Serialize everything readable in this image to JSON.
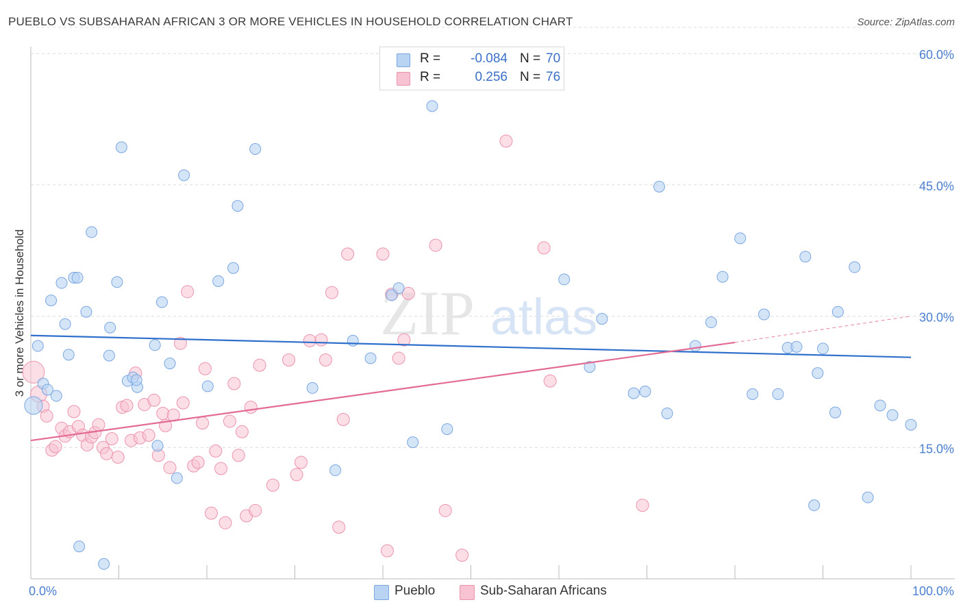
{
  "title": "PUEBLO VS SUBSAHARAN AFRICAN 3 OR MORE VEHICLES IN HOUSEHOLD CORRELATION CHART",
  "source": "Source: ZipAtlas.com",
  "watermark": {
    "zip": "ZIP",
    "atlas": "atlas"
  },
  "legend": {
    "pueblo": {
      "r_label": "R =",
      "r_value": "-0.084",
      "n_label": "N =",
      "n_value": "70"
    },
    "subsaharan": {
      "r_label": "R =",
      "r_value": "0.256",
      "n_label": "N =",
      "n_value": "76"
    }
  },
  "bottom_legend": {
    "pueblo": "Pueblo",
    "subsaharan": "Sub-Saharan Africans"
  },
  "colors": {
    "pueblo_fill": "#b9d3f3",
    "pueblo_stroke": "#7aa6e0",
    "pueblo_line": "#2f6fcc",
    "ss_fill": "#f7c2d2",
    "ss_stroke": "#eb93ad",
    "ss_line": "#e26a94",
    "grid": "#dcdcdc",
    "axis": "#bbbbbb",
    "tick_text": "#4a7fd0"
  },
  "chart_data": {
    "type": "scatter",
    "title": "PUEBLO VS SUBSAHARAN AFRICAN 3 OR MORE VEHICLES IN HOUSEHOLD CORRELATION CHART",
    "xlabel": "",
    "ylabel": "3 or more Vehicles in Household",
    "xlim": [
      0,
      100
    ],
    "ylim": [
      0,
      65
    ],
    "y_ticks": [
      15,
      30,
      45,
      60
    ],
    "y_tick_labels": [
      "15.0%",
      "30.0%",
      "45.0%",
      "60.0%"
    ],
    "x_tick_labels": [
      "0.0%",
      "100.0%"
    ],
    "series": [
      {
        "name": "Pueblo",
        "trend": {
          "x": [
            0,
            100
          ],
          "y": [
            27.8,
            25.3
          ]
        },
        "points": [
          [
            0.3,
            19.8
          ],
          [
            0.8,
            26.6
          ],
          [
            1.4,
            22.3
          ],
          [
            1.9,
            21.6
          ],
          [
            2.3,
            31.8
          ],
          [
            2.9,
            20.9
          ],
          [
            3.5,
            33.8
          ],
          [
            3.9,
            29.1
          ],
          [
            4.3,
            25.6
          ],
          [
            4.9,
            34.4
          ],
          [
            5.3,
            34.4
          ],
          [
            5.5,
            3.7
          ],
          [
            6.3,
            30.5
          ],
          [
            6.9,
            39.6
          ],
          [
            8.3,
            1.7
          ],
          [
            8.9,
            25.5
          ],
          [
            9.0,
            28.7
          ],
          [
            9.8,
            33.9
          ],
          [
            10.3,
            49.3
          ],
          [
            11.0,
            22.6
          ],
          [
            11.6,
            23.0
          ],
          [
            12.1,
            21.9
          ],
          [
            14.1,
            26.7
          ],
          [
            14.4,
            15.2
          ],
          [
            14.9,
            31.6
          ],
          [
            15.8,
            24.6
          ],
          [
            16.6,
            11.5
          ],
          [
            17.4,
            46.1
          ],
          [
            20.1,
            22.0
          ],
          [
            21.3,
            34.0
          ],
          [
            23.0,
            35.5
          ],
          [
            23.5,
            42.6
          ],
          [
            25.5,
            49.1
          ],
          [
            32.0,
            21.8
          ],
          [
            34.6,
            12.4
          ],
          [
            36.6,
            27.2
          ],
          [
            38.6,
            25.2
          ],
          [
            41.0,
            32.4
          ],
          [
            41.8,
            33.2
          ],
          [
            43.4,
            15.6
          ],
          [
            45.6,
            54.0
          ],
          [
            47.3,
            17.1
          ],
          [
            60.6,
            34.2
          ],
          [
            63.5,
            24.2
          ],
          [
            64.9,
            29.7
          ],
          [
            68.5,
            21.2
          ],
          [
            69.8,
            21.4
          ],
          [
            71.4,
            44.8
          ],
          [
            72.3,
            18.9
          ],
          [
            75.5,
            26.6
          ],
          [
            77.3,
            29.3
          ],
          [
            78.6,
            34.5
          ],
          [
            80.6,
            38.9
          ],
          [
            82.0,
            21.1
          ],
          [
            83.3,
            30.2
          ],
          [
            84.9,
            21.1
          ],
          [
            86.0,
            26.4
          ],
          [
            87.0,
            26.5
          ],
          [
            88.0,
            36.8
          ],
          [
            89.0,
            8.4
          ],
          [
            89.4,
            23.5
          ],
          [
            90.0,
            26.3
          ],
          [
            91.4,
            19.0
          ],
          [
            91.7,
            30.5
          ],
          [
            93.6,
            35.6
          ],
          [
            95.1,
            9.3
          ],
          [
            96.5,
            19.8
          ],
          [
            97.9,
            18.7
          ],
          [
            100.0,
            17.6
          ],
          [
            12.0,
            22.7
          ]
        ]
      },
      {
        "name": "Sub-Saharan Africans",
        "trend": {
          "x": [
            0,
            80
          ],
          "y": [
            15.8,
            27.0
          ]
        },
        "trend_dashed": {
          "x": [
            80,
            100
          ],
          "y": [
            27.0,
            30.0
          ]
        },
        "points": [
          [
            0.3,
            23.6
          ],
          [
            0.9,
            21.1
          ],
          [
            1.4,
            19.7
          ],
          [
            1.8,
            18.6
          ],
          [
            2.4,
            14.7
          ],
          [
            2.8,
            15.1
          ],
          [
            3.5,
            17.2
          ],
          [
            3.9,
            16.3
          ],
          [
            4.4,
            16.8
          ],
          [
            4.9,
            19.1
          ],
          [
            5.4,
            17.4
          ],
          [
            5.9,
            16.4
          ],
          [
            6.4,
            15.3
          ],
          [
            6.9,
            16.2
          ],
          [
            7.3,
            16.7
          ],
          [
            7.7,
            17.6
          ],
          [
            8.2,
            15.0
          ],
          [
            8.6,
            14.3
          ],
          [
            9.2,
            16.0
          ],
          [
            9.9,
            13.9
          ],
          [
            10.4,
            19.6
          ],
          [
            10.9,
            19.8
          ],
          [
            11.4,
            15.8
          ],
          [
            11.9,
            23.5
          ],
          [
            12.4,
            16.1
          ],
          [
            12.9,
            19.9
          ],
          [
            13.4,
            16.4
          ],
          [
            14.0,
            20.4
          ],
          [
            14.5,
            14.1
          ],
          [
            15.0,
            18.9
          ],
          [
            15.3,
            17.5
          ],
          [
            15.8,
            12.7
          ],
          [
            16.2,
            18.7
          ],
          [
            17.0,
            26.9
          ],
          [
            17.3,
            20.1
          ],
          [
            17.8,
            32.8
          ],
          [
            18.5,
            12.9
          ],
          [
            19.0,
            13.3
          ],
          [
            19.5,
            17.8
          ],
          [
            19.8,
            24.0
          ],
          [
            20.5,
            7.5
          ],
          [
            21.0,
            14.6
          ],
          [
            21.6,
            12.6
          ],
          [
            22.1,
            6.4
          ],
          [
            22.6,
            18.0
          ],
          [
            23.1,
            22.3
          ],
          [
            23.6,
            14.1
          ],
          [
            24.0,
            16.8
          ],
          [
            24.5,
            7.2
          ],
          [
            25.0,
            19.6
          ],
          [
            25.5,
            7.8
          ],
          [
            26.0,
            24.4
          ],
          [
            27.5,
            10.7
          ],
          [
            29.3,
            25.0
          ],
          [
            30.2,
            11.9
          ],
          [
            30.7,
            13.3
          ],
          [
            31.7,
            27.2
          ],
          [
            33.0,
            27.3
          ],
          [
            33.5,
            25.0
          ],
          [
            34.2,
            32.7
          ],
          [
            35.0,
            5.9
          ],
          [
            35.5,
            18.2
          ],
          [
            36.0,
            37.1
          ],
          [
            40.0,
            37.1
          ],
          [
            40.5,
            3.2
          ],
          [
            41.0,
            32.5
          ],
          [
            41.8,
            25.2
          ],
          [
            42.4,
            27.3
          ],
          [
            42.9,
            32.6
          ],
          [
            46.0,
            38.1
          ],
          [
            47.1,
            7.8
          ],
          [
            49.0,
            2.7
          ],
          [
            54.0,
            50.0
          ],
          [
            58.3,
            37.8
          ],
          [
            59.0,
            22.6
          ],
          [
            69.5,
            8.4
          ]
        ]
      }
    ]
  }
}
